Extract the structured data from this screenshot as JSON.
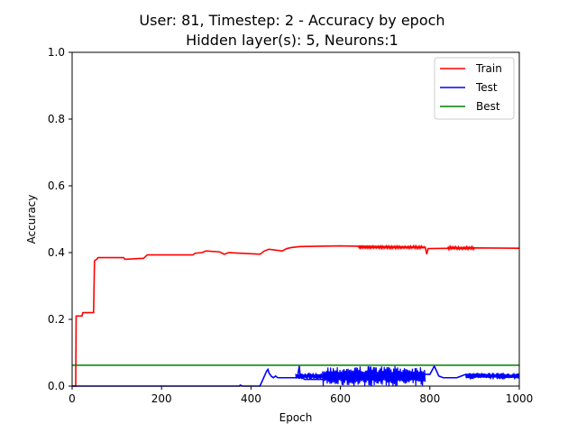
{
  "chart_data": {
    "type": "line",
    "title_line1": "User: 81, Timestep: 2 - Accuracy by epoch",
    "title_line2": "Hidden layer(s): 5, Neurons:1",
    "xlabel": "Epoch",
    "ylabel": "Accuracy",
    "xlim": [
      0,
      1000
    ],
    "ylim": [
      0,
      1.0
    ],
    "xticks": [
      0,
      200,
      400,
      600,
      800,
      1000
    ],
    "yticks": [
      0.0,
      0.2,
      0.4,
      0.6,
      0.8,
      1.0
    ],
    "xtick_labels": [
      "0",
      "200",
      "400",
      "600",
      "800",
      "1000"
    ],
    "ytick_labels": [
      "0.0",
      "0.2",
      "0.4",
      "0.6",
      "0.8",
      "1.0"
    ],
    "grid": false,
    "legend_position": "top-right",
    "series": [
      {
        "name": "Train",
        "color": "#ff0000",
        "points": [
          [
            0,
            0.0
          ],
          [
            8,
            0.0
          ],
          [
            9,
            0.21
          ],
          [
            22,
            0.21
          ],
          [
            24,
            0.22
          ],
          [
            48,
            0.22
          ],
          [
            50,
            0.375
          ],
          [
            55,
            0.38
          ],
          [
            58,
            0.385
          ],
          [
            115,
            0.385
          ],
          [
            118,
            0.38
          ],
          [
            160,
            0.383
          ],
          [
            168,
            0.393
          ],
          [
            270,
            0.393
          ],
          [
            275,
            0.398
          ],
          [
            290,
            0.4
          ],
          [
            300,
            0.405
          ],
          [
            330,
            0.402
          ],
          [
            340,
            0.395
          ],
          [
            350,
            0.4
          ],
          [
            420,
            0.395
          ],
          [
            430,
            0.405
          ],
          [
            440,
            0.41
          ],
          [
            470,
            0.405
          ],
          [
            480,
            0.412
          ],
          [
            490,
            0.415
          ],
          [
            510,
            0.418
          ],
          [
            600,
            0.42
          ],
          [
            700,
            0.418
          ],
          [
            790,
            0.415
          ],
          [
            793,
            0.395
          ],
          [
            796,
            0.412
          ],
          [
            860,
            0.413
          ],
          [
            900,
            0.414
          ],
          [
            1000,
            0.413
          ]
        ],
        "noise_bands": [
          {
            "x0": 640,
            "x1": 790,
            "lo": 0.412,
            "hi": 0.42
          },
          {
            "x0": 840,
            "x1": 900,
            "lo": 0.41,
            "hi": 0.418
          }
        ]
      },
      {
        "name": "Test",
        "color": "#0000ff",
        "points": [
          [
            0,
            0.0
          ],
          [
            374,
            0.0
          ],
          [
            376,
            0.003
          ],
          [
            380,
            0.0
          ],
          [
            420,
            0.0
          ],
          [
            425,
            0.015
          ],
          [
            430,
            0.03
          ],
          [
            435,
            0.045
          ],
          [
            438,
            0.05
          ],
          [
            440,
            0.04
          ],
          [
            445,
            0.03
          ],
          [
            450,
            0.025
          ],
          [
            455,
            0.03
          ],
          [
            460,
            0.025
          ],
          [
            500,
            0.025
          ],
          [
            505,
            0.035
          ],
          [
            508,
            0.06
          ],
          [
            510,
            0.03
          ],
          [
            520,
            0.02
          ],
          [
            560,
            0.02
          ],
          [
            600,
            0.03
          ],
          [
            640,
            0.035
          ],
          [
            680,
            0.04
          ],
          [
            800,
            0.035
          ],
          [
            810,
            0.06
          ],
          [
            820,
            0.03
          ],
          [
            830,
            0.025
          ],
          [
            860,
            0.025
          ],
          [
            880,
            0.035
          ],
          [
            920,
            0.035
          ],
          [
            960,
            0.03
          ],
          [
            1000,
            0.03
          ]
        ],
        "noise_bands": [
          {
            "x0": 560,
            "x1": 790,
            "lo": 0.0,
            "hi": 0.06
          },
          {
            "x0": 500,
            "x1": 560,
            "lo": 0.02,
            "hi": 0.04
          },
          {
            "x0": 880,
            "x1": 1000,
            "lo": 0.02,
            "hi": 0.04
          }
        ]
      },
      {
        "name": "Best",
        "color": "#008000",
        "points": [
          [
            0,
            0.0625
          ],
          [
            1000,
            0.0625
          ]
        ]
      }
    ]
  }
}
